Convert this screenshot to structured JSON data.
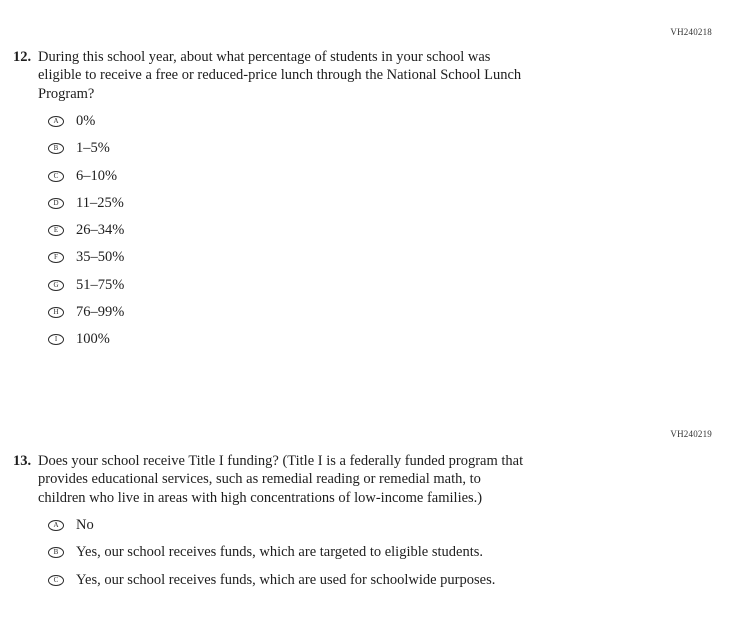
{
  "page": {
    "background": "#ffffff",
    "text_color": "#1e1e1e",
    "bubble_border_color": "#2b2b2b"
  },
  "questions": [
    {
      "code": "VH240218",
      "number": "12.",
      "text_lines": [
        "During this school year, about what percentage of students in your school was",
        "eligible to receive a free or reduced-price lunch through the National School Lunch",
        "Program?"
      ],
      "options": [
        {
          "letter": "A",
          "label": "0%"
        },
        {
          "letter": "B",
          "label": "1–5%"
        },
        {
          "letter": "C",
          "label": "6–10%"
        },
        {
          "letter": "D",
          "label": "11–25%"
        },
        {
          "letter": "E",
          "label": "26–34%"
        },
        {
          "letter": "F",
          "label": "35–50%"
        },
        {
          "letter": "G",
          "label": "51–75%"
        },
        {
          "letter": "H",
          "label": "76–99%"
        },
        {
          "letter": "I",
          "label": "100%"
        }
      ]
    },
    {
      "code": "VH240219",
      "number": "13.",
      "text_lines": [
        "Does your school receive Title I funding? (Title I is a federally funded program that",
        "provides educational services, such as remedial reading or remedial math, to",
        "children who live in areas with high concentrations of low-income families.)"
      ],
      "options": [
        {
          "letter": "A",
          "label": "No"
        },
        {
          "letter": "B",
          "label": "Yes, our school receives funds, which are targeted to eligible students."
        },
        {
          "letter": "C",
          "label": "Yes, our school receives funds, which are used for schoolwide purposes."
        }
      ]
    }
  ]
}
